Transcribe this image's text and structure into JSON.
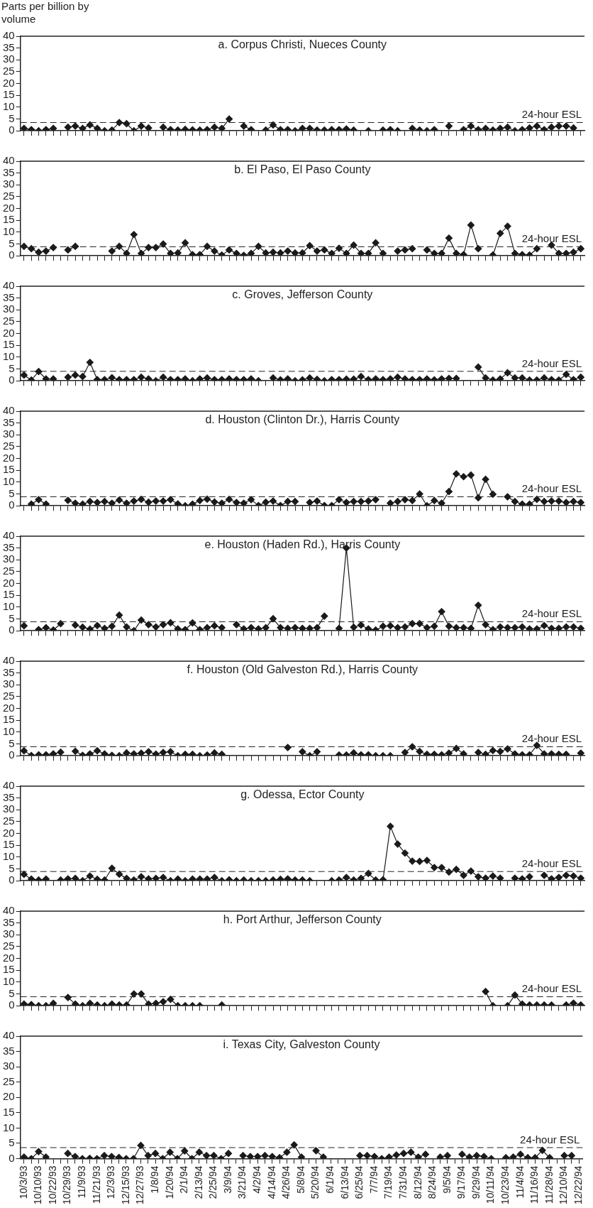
{
  "chart_data": [
    {
      "type": "line",
      "title": "a. Corpus Christi, Nueces County",
      "ylabel": "Parts per billion by volume",
      "series": [
        {
          "color": "#1a1a1a",
          "values": [
            1,
            0.5,
            0,
            0.5,
            1,
            null,
            1.5,
            2,
            1,
            2.5,
            1,
            0,
            0.3,
            3.5,
            3,
            0,
            2,
            1.2,
            null,
            1.5,
            0.5,
            0.3,
            0.6,
            0.4,
            0.3,
            0.5,
            1.5,
            1,
            5,
            null,
            2,
            0.5,
            null,
            0.3,
            2.5,
            0.5,
            0.5,
            0,
            1,
            1,
            0.3,
            0.3,
            0.5,
            0.5,
            0.8,
            0.3,
            null,
            0,
            null,
            0.3,
            0.5,
            0,
            null,
            1,
            0.3,
            0,
            0.5,
            null,
            2,
            null,
            0.5,
            2,
            0.5,
            1,
            0.3,
            1,
            1.5,
            0,
            0.5,
            1.2,
            2,
            0.5,
            1.5,
            2,
            2,
            1.2,
            null
          ]
        }
      ],
      "ylim": [
        0,
        40
      ],
      "yticks": [
        0,
        5,
        10,
        15,
        20,
        25,
        30,
        35,
        40
      ],
      "ref_lines": [
        {
          "axis": "y",
          "value": 3.5,
          "label": "24-hour ESL",
          "line_style": "dashed"
        }
      ],
      "tick_labels": "y",
      "marker": "diamond",
      "line_style": "solid"
    },
    {
      "type": "line",
      "title": "b. El Paso, El Paso County",
      "series": [
        {
          "color": "#1a1a1a",
          "values": [
            4,
            3,
            1.5,
            2,
            3.5,
            null,
            2.5,
            4,
            null,
            null,
            null,
            null,
            2,
            4,
            1,
            9,
            1,
            3.5,
            3.5,
            5,
            1,
            1.2,
            5.5,
            0.5,
            0.5,
            4,
            2,
            0.3,
            2.5,
            1,
            0.2,
            1,
            4,
            1.2,
            1.5,
            1.2,
            2,
            1.2,
            1.2,
            4.3,
            2,
            2.5,
            1,
            3.2,
            1,
            4.5,
            1,
            1,
            5.5,
            1,
            null,
            2,
            2.5,
            3,
            null,
            2.5,
            1,
            1,
            7.5,
            1,
            0.5,
            13,
            3,
            null,
            0.3,
            9.5,
            12.5,
            1,
            0.5,
            0.3,
            3,
            null,
            4.5,
            1,
            1,
            1.5,
            3
          ]
        }
      ],
      "ylim": [
        0,
        40
      ],
      "yticks": [
        0,
        5,
        10,
        15,
        20,
        25,
        30,
        35,
        40
      ],
      "ref_lines": [
        {
          "axis": "y",
          "value": 3.8,
          "label": "24-hour ESL",
          "line_style": "dashed"
        }
      ],
      "tick_labels": "y",
      "marker": "diamond",
      "line_style": "solid"
    },
    {
      "type": "line",
      "title": "c. Groves, Jefferson County",
      "series": [
        {
          "color": "#1a1a1a",
          "values": [
            2.4,
            0.3,
            3.9,
            0.8,
            0.8,
            null,
            1.5,
            2.4,
            1.8,
            7.8,
            0.5,
            0.5,
            1.3,
            0.5,
            0.5,
            0.5,
            1.5,
            0.8,
            0,
            1.5,
            0.5,
            0.5,
            0.8,
            0,
            0.8,
            1.2,
            0.5,
            0.5,
            0.8,
            0.5,
            0.5,
            0.8,
            0,
            null,
            1.2,
            0.4,
            0.8,
            0,
            0.4,
            1.2,
            0.6,
            0,
            0.5,
            0.5,
            0.7,
            0.7,
            1.8,
            0.5,
            0.8,
            0.5,
            0.8,
            1.5,
            0.8,
            0.5,
            0.5,
            0.8,
            0.4,
            0.8,
            1,
            1,
            null,
            null,
            5.8,
            1.2,
            0.3,
            0.8,
            3.4,
            1.2,
            1.2,
            0.3,
            0.3,
            1.2,
            0.5,
            0.3,
            2.7,
            0.5,
            1.5
          ]
        }
      ],
      "ylim": [
        0,
        40
      ],
      "yticks": [
        0,
        5,
        10,
        15,
        20,
        25,
        30,
        35,
        40
      ],
      "ref_lines": [
        {
          "axis": "y",
          "value": 4,
          "label": "24-hour ESL",
          "line_style": "dashed"
        }
      ],
      "tick_labels": "y",
      "marker": "diamond",
      "line_style": "solid"
    },
    {
      "type": "line",
      "title": "d. Houston (Clinton Dr.), Harris County",
      "series": [
        {
          "color": "#1a1a1a",
          "values": [
            null,
            0.7,
            2.6,
            0.7,
            null,
            null,
            2.3,
            1.1,
            0.7,
            1.8,
            1.4,
            1.8,
            1.1,
            2.4,
            1.1,
            2,
            2.7,
            1.5,
            2,
            2,
            2.6,
            0.8,
            0,
            0.7,
            2.2,
            2.8,
            1.6,
            1.1,
            2.7,
            1.4,
            1.1,
            2.6,
            0.1,
            1.5,
            2,
            0.1,
            1.8,
            1.8,
            null,
            1.4,
            2,
            0.1,
            0.1,
            2.6,
            1.4,
            1.8,
            1.8,
            2,
            2.6,
            null,
            1.1,
            1.8,
            2.6,
            2.2,
            5,
            0,
            2.2,
            1.1,
            6,
            13.5,
            12.3,
            13,
            3.4,
            11.2,
            4.9,
            null,
            3.8,
            1.8,
            0.7,
            0.7,
            2.7,
            1.8,
            2,
            2,
            1.4,
            1.8,
            1.4
          ]
        }
      ],
      "ylim": [
        0,
        40
      ],
      "yticks": [
        0,
        5,
        10,
        15,
        20,
        25,
        30,
        35,
        40
      ],
      "ref_lines": [
        {
          "axis": "y",
          "value": 3.8,
          "label": "24-hour ESL",
          "line_style": "dashed"
        }
      ],
      "tick_labels": "y",
      "marker": "diamond",
      "line_style": "solid"
    },
    {
      "type": "line",
      "title": "e. Houston (Haden Rd.), Harris County",
      "series": [
        {
          "color": "#1a1a1a",
          "values": [
            2.1,
            null,
            0.5,
            1.3,
            0.3,
            3,
            null,
            2.4,
            1.5,
            0.7,
            2.2,
            1,
            1.9,
            6.6,
            1.6,
            0,
            4.5,
            2.6,
            1.6,
            2.6,
            3.4,
            0.8,
            0.5,
            3.3,
            0.5,
            1.3,
            2.1,
            1.3,
            null,
            2.6,
            0.8,
            1.3,
            0.8,
            1.3,
            5.1,
            1.3,
            1,
            1.3,
            1,
            1,
            1.3,
            6.2,
            null,
            1,
            35,
            1.5,
            2.4,
            0.8,
            0.3,
            1.9,
            2.1,
            1.3,
            1.6,
            3,
            3,
            1.3,
            1.9,
            8.1,
            1.9,
            1.3,
            1.3,
            1,
            10.8,
            2.6,
            0.5,
            1.6,
            1.3,
            1.3,
            1.6,
            0.8,
            0.8,
            2.2,
            1,
            1,
            1.6,
            1.6,
            1
          ]
        }
      ],
      "ylim": [
        0,
        40
      ],
      "yticks": [
        0,
        5,
        10,
        15,
        20,
        25,
        30,
        35,
        40
      ],
      "ref_lines": [
        {
          "axis": "y",
          "value": 3.8,
          "label": "24-hour ESL",
          "line_style": "dashed"
        }
      ],
      "tick_labels": "y",
      "marker": "diamond",
      "line_style": "solid"
    },
    {
      "type": "line",
      "title": "f. Houston (Old Galveston Rd.), Harris County",
      "series": [
        {
          "color": "#1a1a1a",
          "values": [
            2.1,
            0.1,
            0.4,
            0.4,
            0.8,
            1.5,
            null,
            1.9,
            0.2,
            0.8,
            2.1,
            0.8,
            0.2,
            0,
            1.2,
            0.8,
            1.1,
            1.7,
            0.7,
            1.4,
            1.7,
            0,
            0.6,
            0.6,
            0,
            0.3,
            1.2,
            0.6,
            null,
            null,
            null,
            null,
            null,
            null,
            null,
            null,
            3.5,
            null,
            1.7,
            0,
            1.7,
            null,
            null,
            0.3,
            0.3,
            1.2,
            0.4,
            0.4,
            0,
            0,
            0,
            null,
            1.4,
            3.8,
            1.8,
            0.6,
            0.6,
            0.4,
            1.1,
            3.1,
            0.8,
            null,
            1.4,
            0.6,
            2.2,
            1.8,
            2.9,
            0.8,
            0.4,
            0.4,
            4.4,
            0.8,
            0.8,
            0.6,
            0.6,
            null,
            1.1
          ]
        }
      ],
      "ylim": [
        0,
        40
      ],
      "yticks": [
        0,
        5,
        10,
        15,
        20,
        25,
        30,
        35,
        40
      ],
      "ref_lines": [
        {
          "axis": "y",
          "value": 3.8,
          "label": "24-hour ESL",
          "line_style": "dashed"
        }
      ],
      "tick_labels": "y",
      "marker": "diamond",
      "line_style": "solid"
    },
    {
      "type": "line",
      "title": "g. Odessa, Ector County",
      "series": [
        {
          "color": "#1a1a1a",
          "values": [
            2.7,
            0.7,
            0.3,
            0.7,
            null,
            0.3,
            0.8,
            1,
            0,
            2,
            0.6,
            0.3,
            5.3,
            2.8,
            1,
            0.3,
            1.7,
            0.8,
            1,
            1.4,
            0,
            0.7,
            0,
            0.7,
            0.7,
            0.7,
            1.4,
            0,
            0.4,
            0,
            0.3,
            0,
            0,
            0,
            0.3,
            0.6,
            0.8,
            0.3,
            0.3,
            0,
            null,
            null,
            0,
            0.3,
            1.4,
            0.3,
            1,
            3.1,
            0.3,
            0.4,
            23,
            15.5,
            11.7,
            8.3,
            8.2,
            8.6,
            5.6,
            5.6,
            3.7,
            4.8,
            2.3,
            4.1,
            1.7,
            1.1,
            2,
            1.1,
            null,
            1.1,
            0.8,
            1.7,
            null,
            2.3,
            0.8,
            1.4,
            2.3,
            2,
            1.1
          ]
        }
      ],
      "ylim": [
        0,
        40
      ],
      "yticks": [
        0,
        5,
        10,
        15,
        20,
        25,
        30,
        35,
        40
      ],
      "ref_lines": [
        {
          "axis": "y",
          "value": 3.9,
          "label": "24-hour ESL",
          "line_style": "dashed"
        }
      ],
      "tick_labels": "y",
      "marker": "diamond",
      "line_style": "solid"
    },
    {
      "type": "line",
      "title": "h. Port Arthur, Jefferson County",
      "series": [
        {
          "color": "#1a1a1a",
          "values": [
            0.7,
            0.5,
            0,
            0,
            1,
            null,
            3.5,
            0.7,
            0,
            1,
            0.3,
            0,
            0.7,
            0.3,
            0.3,
            5,
            5,
            0.7,
            1,
            1.7,
            2.7,
            0,
            0,
            0,
            0,
            null,
            null,
            0.3,
            null,
            null,
            null,
            null,
            null,
            null,
            null,
            null,
            null,
            null,
            null,
            null,
            null,
            null,
            null,
            null,
            null,
            null,
            null,
            null,
            null,
            null,
            null,
            null,
            null,
            null,
            null,
            null,
            null,
            null,
            null,
            null,
            null,
            null,
            null,
            6,
            0,
            null,
            0,
            4.5,
            0.7,
            0.3,
            0.3,
            0.3,
            0.3,
            null,
            0.3,
            1.1,
            0.3
          ]
        }
      ],
      "ylim": [
        0,
        40
      ],
      "yticks": [
        0,
        5,
        10,
        15,
        20,
        25,
        30,
        35,
        40
      ],
      "ref_lines": [
        {
          "axis": "y",
          "value": 3.8,
          "label": "24-hour ESL",
          "line_style": "dashed"
        }
      ],
      "tick_labels": "y",
      "marker": "diamond",
      "line_style": "solid"
    },
    {
      "type": "line",
      "title": "i. Texas City, Galveston County",
      "categories": [
        "10/3/93",
        null,
        "10/10/93",
        null,
        "10/22/93",
        null,
        "10/29/93",
        null,
        "11/9/93",
        null,
        "11/21/93",
        null,
        "12/3/93",
        null,
        "12/15/93",
        null,
        "12/27/93",
        null,
        "1/8/94",
        null,
        "1/20/94",
        null,
        "2/1/94",
        null,
        "2/13/94",
        null,
        "2/25/94",
        null,
        "3/9/94",
        null,
        "3/21/94",
        null,
        "4/2/94",
        null,
        "4/14/94",
        null,
        "4/26/94",
        null,
        "5/8/94",
        null,
        "5/20/94",
        null,
        "6/1/94",
        null,
        "6/13/94",
        null,
        "6/25/94",
        null,
        "7/7/94",
        null,
        "7/19/94",
        null,
        "7/31/94",
        null,
        "8/12/94",
        null,
        "8/24/94",
        null,
        "9/5/94",
        null,
        "9/17/94",
        null,
        "9/29/94",
        null,
        "10/11/94",
        null,
        "10/23/94",
        null,
        "11/4/94",
        null,
        "11/16/94",
        null,
        "11/28/94",
        null,
        "12/10/94",
        null,
        "12/22/94"
      ],
      "series": [
        {
          "color": "#1a1a1a",
          "values": [
            0.5,
            0,
            2.3,
            0.5,
            null,
            null,
            1.7,
            0.7,
            0,
            0.1,
            0,
            1,
            0.7,
            0.4,
            0,
            0,
            4.3,
            1,
            1.7,
            0,
            2.1,
            0,
            2.5,
            0,
            2.1,
            1,
            1,
            0,
            1.7,
            null,
            1,
            0.7,
            0.7,
            1,
            0.7,
            0.3,
            2.1,
            4.5,
            0.5,
            null,
            2.6,
            0.5,
            null,
            null,
            null,
            null,
            1,
            1,
            0.7,
            0,
            0.5,
            1.2,
            1.7,
            2.1,
            0.5,
            1.4,
            null,
            0.5,
            1,
            null,
            1.4,
            0.5,
            1,
            0.7,
            0,
            null,
            0.3,
            0.5,
            1.4,
            0.3,
            0.3,
            2.7,
            0.3,
            null,
            1,
            1,
            null
          ]
        }
      ],
      "ylim": [
        0,
        40
      ],
      "yticks": [
        0,
        5,
        10,
        15,
        20,
        25,
        30,
        35,
        40
      ],
      "ref_lines": [
        {
          "axis": "y",
          "value": 3.6,
          "label": "24-hour ESL",
          "line_style": "dashed"
        }
      ],
      "marker": "diamond",
      "line_style": "solid"
    }
  ]
}
